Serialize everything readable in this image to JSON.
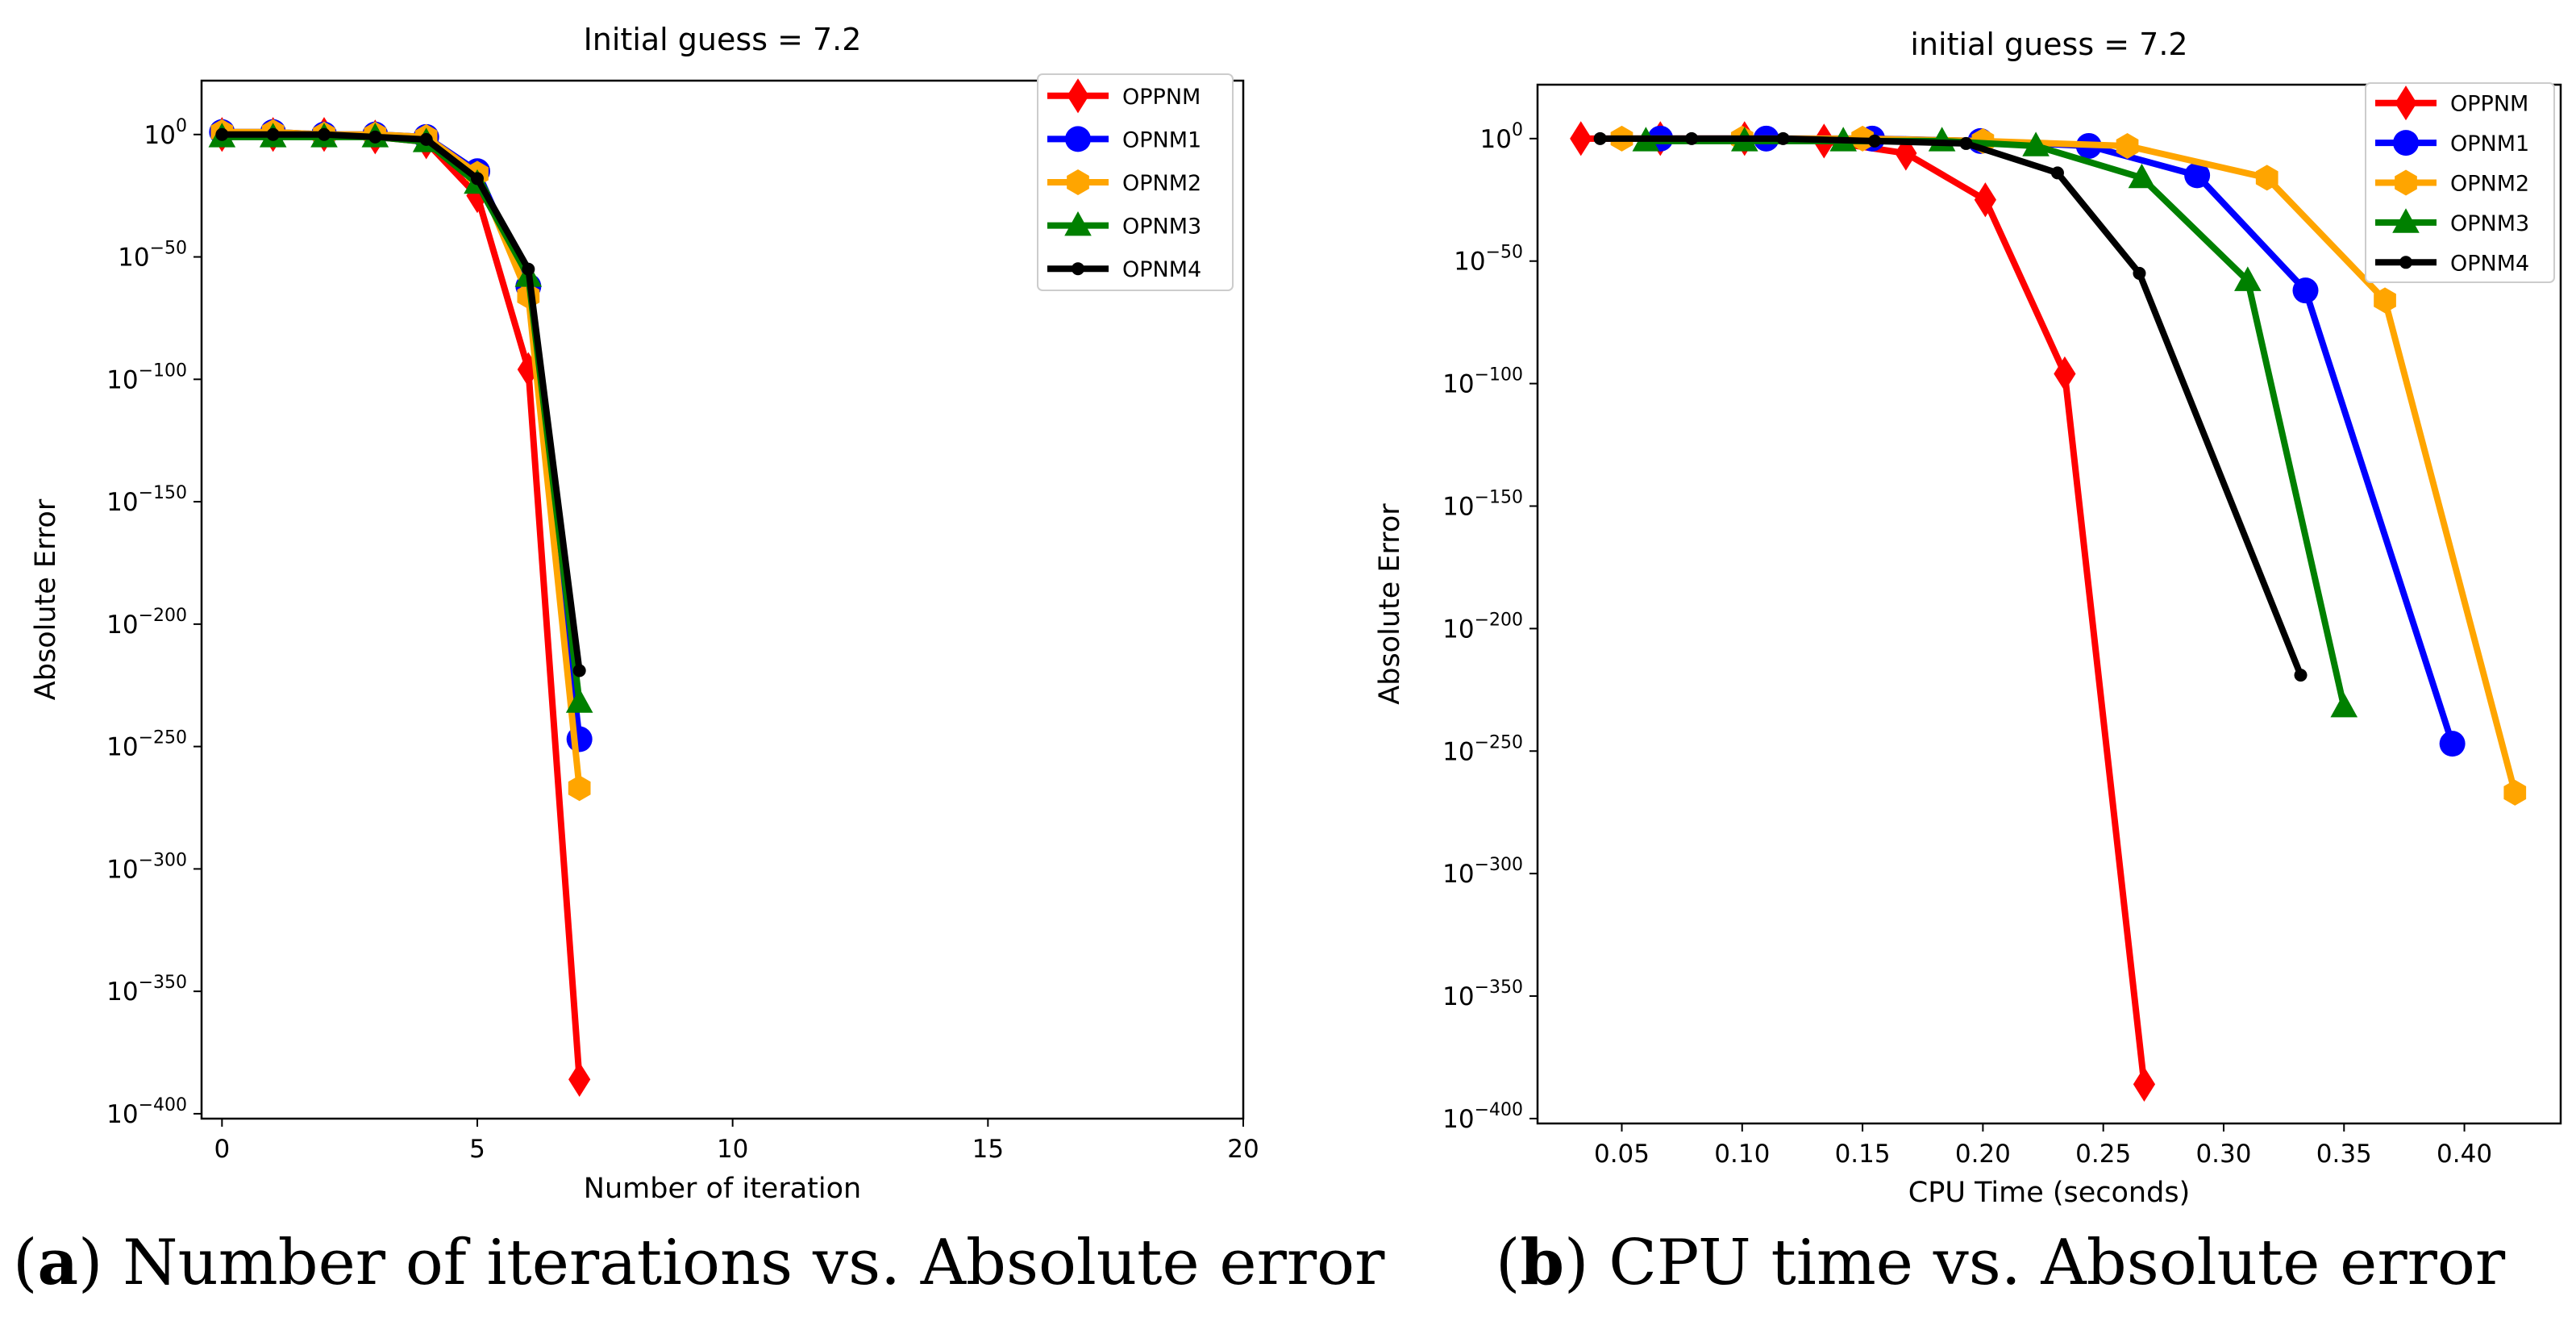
{
  "chart_data": [
    {
      "type": "line",
      "title": "Initial guess = 7.2",
      "xlabel": "Number of iteration",
      "ylabel": "Absolute Error",
      "xlim": [
        -0.4,
        20.0
      ],
      "ylim": [
        -402,
        22
      ],
      "xticks": [
        0,
        5,
        10,
        15,
        20
      ],
      "xtick_labels": [
        "0",
        "5",
        "10",
        "15",
        "20"
      ],
      "yticks": [
        0,
        -50,
        -100,
        -150,
        -200,
        -250,
        -300,
        -350,
        -400
      ],
      "ytick_bases": [
        "10",
        "10",
        "10",
        "10",
        "10",
        "10",
        "10",
        "10",
        "10"
      ],
      "ytick_exps": [
        "0",
        "−50",
        "−100",
        "−150",
        "−200",
        "−250",
        "−300",
        "−350",
        "−400"
      ],
      "y_scale": "log10",
      "legend": "top-right",
      "series": [
        {
          "name": "OPPNM",
          "color": "#ff0000",
          "marker": "diamond",
          "x": [
            0,
            1,
            2,
            3,
            4,
            5,
            6,
            7
          ],
          "y": [
            0,
            0,
            0,
            -1,
            -3,
            -25,
            -96,
            -386
          ]
        },
        {
          "name": "OPNM1",
          "color": "#0000ff",
          "marker": "circle",
          "x": [
            0,
            1,
            2,
            3,
            4,
            5,
            6,
            7
          ],
          "y": [
            1,
            1,
            0,
            0,
            -1,
            -15,
            -62,
            -247
          ]
        },
        {
          "name": "OPNM2",
          "color": "#ffa500",
          "marker": "hexagon",
          "x": [
            0,
            1,
            2,
            3,
            4,
            5,
            6,
            7
          ],
          "y": [
            1,
            1,
            0,
            0,
            -1,
            -16,
            -66,
            -267
          ]
        },
        {
          "name": "OPNM3",
          "color": "#008000",
          "marker": "triangle",
          "x": [
            0,
            1,
            2,
            3,
            4,
            5,
            6,
            7
          ],
          "y": [
            -1,
            -1,
            -1,
            -1,
            -3,
            -20,
            -58,
            -232
          ]
        },
        {
          "name": "OPNM4",
          "color": "#000000",
          "marker": "point",
          "x": [
            0,
            1,
            2,
            3,
            4,
            5,
            6,
            7
          ],
          "y": [
            0,
            0,
            0,
            -1,
            -2,
            -18,
            -55,
            -219
          ]
        }
      ]
    },
    {
      "type": "line",
      "title": "initial guess = 7.2",
      "xlabel": "CPU Time (seconds)",
      "ylabel": "Absolute Error",
      "xlim": [
        0.015,
        0.44
      ],
      "ylim": [
        -402,
        22
      ],
      "xticks": [
        0.05,
        0.1,
        0.15,
        0.2,
        0.25,
        0.3,
        0.35,
        0.4
      ],
      "xtick_labels": [
        "0.05",
        "0.10",
        "0.15",
        "0.20",
        "0.25",
        "0.30",
        "0.35",
        "0.40"
      ],
      "yticks": [
        0,
        -50,
        -100,
        -150,
        -200,
        -250,
        -300,
        -350,
        -400
      ],
      "ytick_bases": [
        "10",
        "10",
        "10",
        "10",
        "10",
        "10",
        "10",
        "10",
        "10"
      ],
      "ytick_exps": [
        "0",
        "−50",
        "−100",
        "−150",
        "−200",
        "−250",
        "−300",
        "−350",
        "−400"
      ],
      "y_scale": "log10",
      "legend": "top-right",
      "series": [
        {
          "name": "OPPNM",
          "color": "#ff0000",
          "marker": "diamond",
          "x": [
            0.033,
            0.066,
            0.101,
            0.134,
            0.168,
            0.201,
            0.234,
            0.267
          ],
          "y": [
            0,
            0,
            0,
            -1,
            -6,
            -25,
            -96,
            -386
          ]
        },
        {
          "name": "OPNM1",
          "color": "#0000ff",
          "marker": "circle",
          "x": [
            0.066,
            0.11,
            0.154,
            0.199,
            0.244,
            0.289,
            0.334,
            0.395
          ],
          "y": [
            0,
            0,
            0,
            -1,
            -3,
            -15,
            -62,
            -247
          ]
        },
        {
          "name": "OPNM2",
          "color": "#ffa500",
          "marker": "hexagon",
          "x": [
            0.05,
            0.1,
            0.15,
            0.2,
            0.26,
            0.318,
            0.367,
            0.421
          ],
          "y": [
            0,
            0,
            0,
            -1,
            -3,
            -16,
            -66,
            -267
          ]
        },
        {
          "name": "OPNM3",
          "color": "#008000",
          "marker": "triangle",
          "x": [
            0.06,
            0.101,
            0.142,
            0.183,
            0.222,
            0.266,
            0.31,
            0.35
          ],
          "y": [
            -1,
            -1,
            -1,
            -1,
            -3,
            -16,
            -58,
            -232
          ]
        },
        {
          "name": "OPNM4",
          "color": "#000000",
          "marker": "point",
          "x": [
            0.041,
            0.079,
            0.117,
            0.155,
            0.193,
            0.231,
            0.265,
            0.332
          ],
          "y": [
            0,
            0,
            0,
            -1,
            -2,
            -14,
            -55,
            -219
          ]
        }
      ]
    }
  ],
  "captions": [
    {
      "letter": "a",
      "text": " Number of iterations vs. Absolute error"
    },
    {
      "letter": "b",
      "text": " CPU time vs. Absolute error"
    }
  ]
}
